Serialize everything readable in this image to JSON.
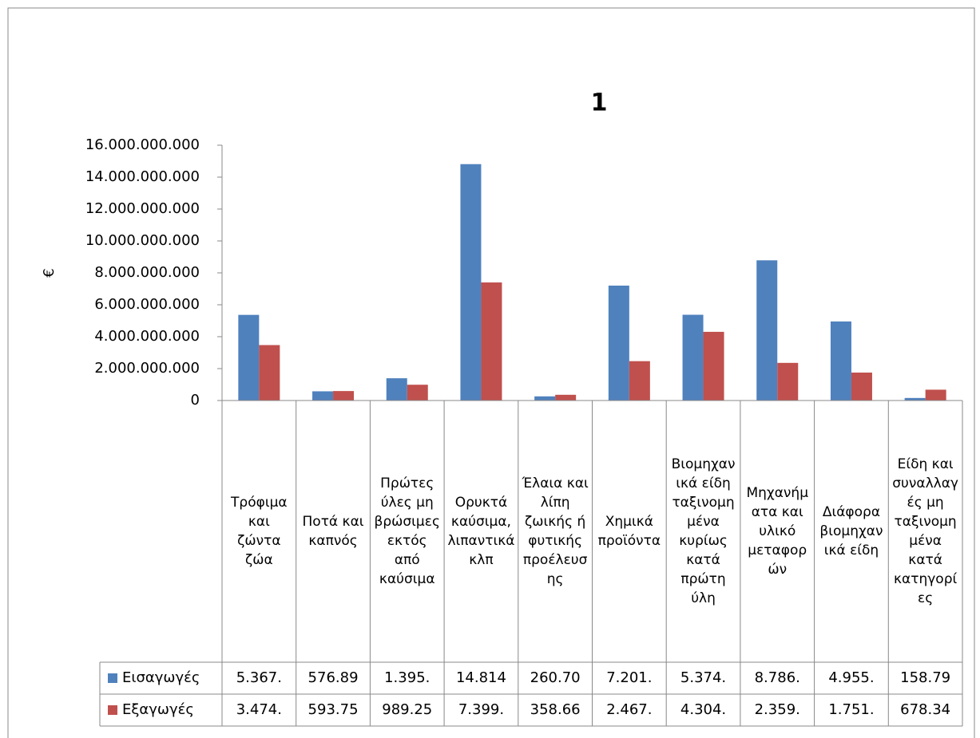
{
  "chart_data": {
    "type": "bar",
    "title": "1",
    "y_label": "€",
    "categories": [
      "Τρόφιμα και ζώντα ζώα",
      "Ποτά και καπνός",
      "Πρώτες ύλες μη βρώσιμες εκτός από καύσιμα",
      "Ορυκτά καύσιμα, λιπαντικά κλπ",
      "Έλαια και λίπη ζωικής ή φυτικής προέλευσης",
      "Χημικά προϊόντα",
      "Βιομηχανικά είδη ταξινομημένα κυρίως κατά πρώτη ύλη",
      "Μηχανήματα και υλικό μεταφορών",
      "Διάφορα βιομηχανικά είδη",
      "Είδη και συναλλαγές μη ταξινομημένα κατά κατηγορίες"
    ],
    "series": [
      {
        "name": "Εισαγωγές",
        "color": "#4f81bd",
        "values": [
          5367000000,
          576890000,
          1395000000,
          14814000000,
          260700000,
          7201000000,
          5374000000,
          8786000000,
          4955000000,
          158790000
        ],
        "value_labels": [
          "5.367.",
          "576.89",
          "1.395.",
          "14.814",
          "260.70",
          "7.201.",
          "5.374.",
          "8.786.",
          "4.955.",
          "158.79"
        ]
      },
      {
        "name": "Εξαγωγές",
        "color": "#c0504d",
        "values": [
          3474000000,
          593750000,
          989250000,
          7399000000,
          358660000,
          2467000000,
          4304000000,
          2359000000,
          1751000000,
          678340000
        ],
        "value_labels": [
          "3.474.",
          "593.75",
          "989.25",
          "7.399.",
          "358.66",
          "2.467.",
          "4.304.",
          "2.359.",
          "1.751.",
          "678.34"
        ]
      }
    ],
    "ylim": [
      0,
      16000000000
    ],
    "yticks": [
      0,
      {
        "value": 2000000000,
        "label": "2.000.000.000"
      },
      {
        "value": 4000000000,
        "label": "4.000.000.000"
      },
      {
        "value": 6000000000,
        "label": "6.000.000.000"
      },
      {
        "value": 8000000000,
        "label": "8.000.000.000"
      },
      {
        "value": 10000000000,
        "label": "10.000.000.000"
      },
      {
        "value": 12000000000,
        "label": "12.000.000.000"
      },
      {
        "value": 14000000000,
        "label": "14.000.000.000"
      },
      {
        "value": 16000000000,
        "label": "16.000.000.000"
      }
    ],
    "grid": false
  }
}
